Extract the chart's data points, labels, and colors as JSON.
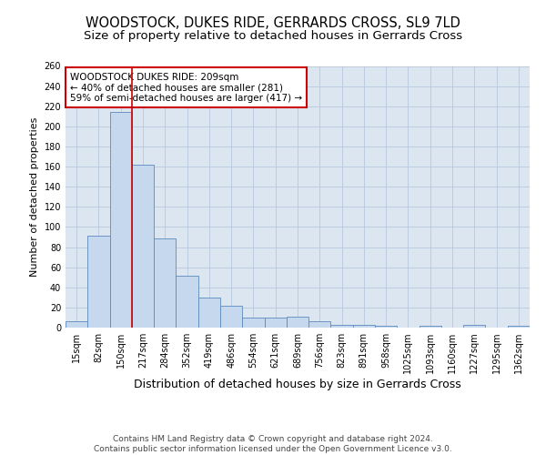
{
  "title": "WOODSTOCK, DUKES RIDE, GERRARDS CROSS, SL9 7LD",
  "subtitle": "Size of property relative to detached houses in Gerrards Cross",
  "xlabel": "Distribution of detached houses by size in Gerrards Cross",
  "ylabel": "Number of detached properties",
  "categories": [
    "15sqm",
    "82sqm",
    "150sqm",
    "217sqm",
    "284sqm",
    "352sqm",
    "419sqm",
    "486sqm",
    "554sqm",
    "621sqm",
    "689sqm",
    "756sqm",
    "823sqm",
    "891sqm",
    "958sqm",
    "1025sqm",
    "1093sqm",
    "1160sqm",
    "1227sqm",
    "1295sqm",
    "1362sqm"
  ],
  "values": [
    6,
    91,
    214,
    162,
    89,
    52,
    30,
    22,
    10,
    10,
    11,
    6,
    3,
    3,
    2,
    0,
    2,
    0,
    3,
    0,
    2
  ],
  "bar_color": "#c5d8ee",
  "bar_edge_color": "#5b8abf",
  "grid_color": "#b8c8dc",
  "background_color": "#dce6f1",
  "vline_x": 2.5,
  "vline_color": "#cc0000",
  "annotation_text": "WOODSTOCK DUKES RIDE: 209sqm\n← 40% of detached houses are smaller (281)\n59% of semi-detached houses are larger (417) →",
  "annotation_box_color": "#ffffff",
  "annotation_box_edge": "#cc0000",
  "ylim": [
    0,
    260
  ],
  "yticks": [
    0,
    20,
    40,
    60,
    80,
    100,
    120,
    140,
    160,
    180,
    200,
    220,
    240,
    260
  ],
  "footer_line1": "Contains HM Land Registry data © Crown copyright and database right 2024.",
  "footer_line2": "Contains public sector information licensed under the Open Government Licence v3.0.",
  "title_fontsize": 10.5,
  "subtitle_fontsize": 9.5,
  "xlabel_fontsize": 9,
  "ylabel_fontsize": 8,
  "tick_fontsize": 7,
  "annotation_fontsize": 7.5,
  "footer_fontsize": 6.5
}
